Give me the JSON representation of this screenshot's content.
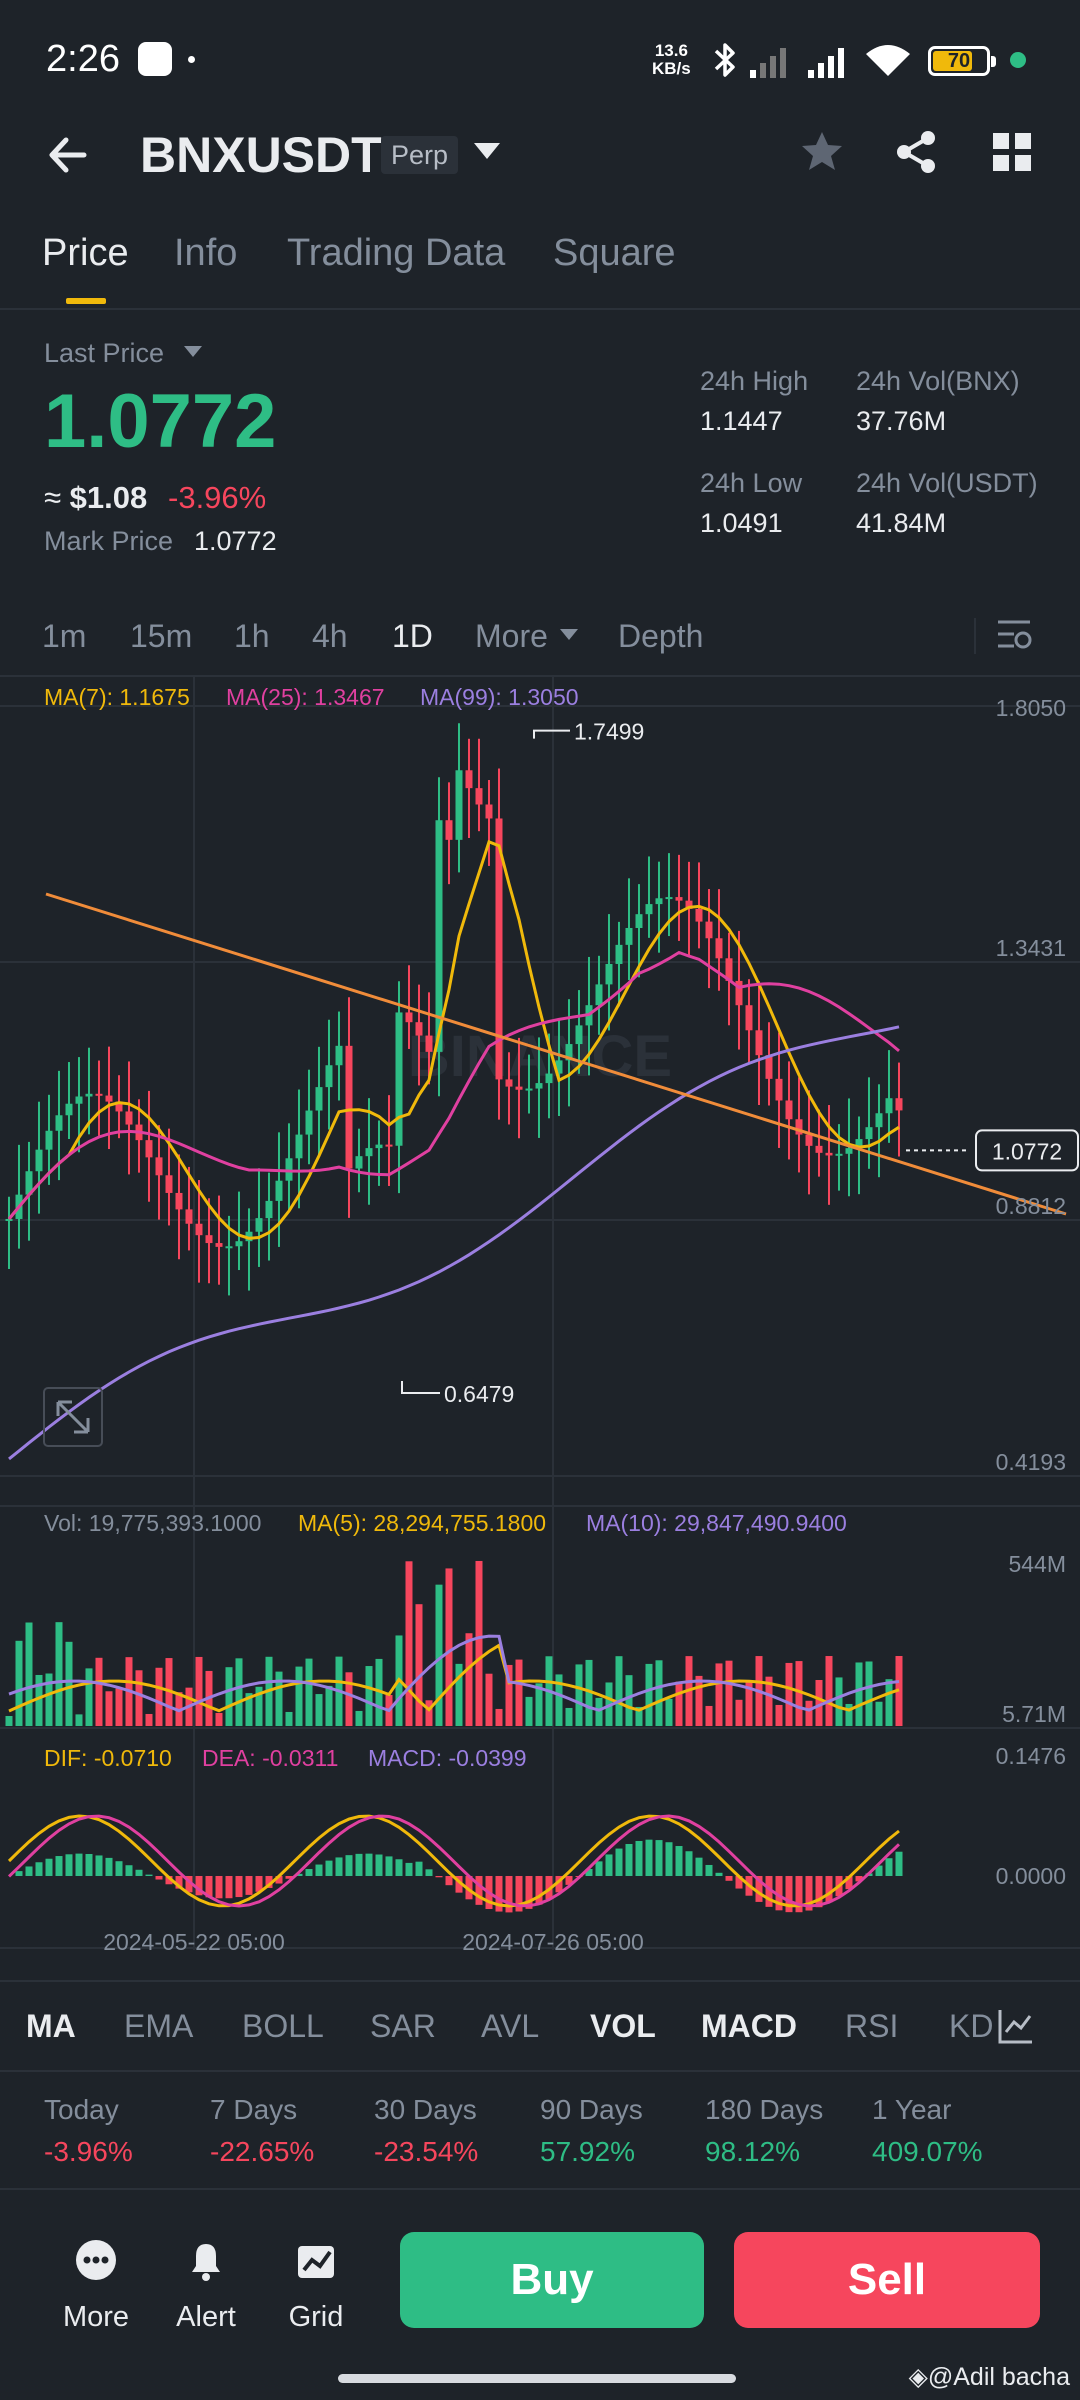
{
  "status_bar": {
    "time": "2:26",
    "net_speed_value": "13.6",
    "net_speed_unit": "KB/s",
    "battery": "70"
  },
  "header": {
    "symbol": "BNXUSDT",
    "contract_badge": "Perp",
    "icons": [
      "back-arrow-icon",
      "star-icon",
      "share-icon",
      "grid-icon"
    ]
  },
  "tabs": [
    {
      "label": "Price",
      "active": true
    },
    {
      "label": "Info",
      "active": false
    },
    {
      "label": "Trading Data",
      "active": false
    },
    {
      "label": "Square",
      "active": false
    }
  ],
  "price": {
    "last_price_label": "Last Price",
    "last_price": "1.0772",
    "approx_prefix": "≈",
    "approx_usd": "$1.08",
    "change_pct": "-3.96%",
    "mark_price_label": "Mark Price",
    "mark_price": "1.0772"
  },
  "stats": {
    "high_label": "24h High",
    "high": "1.1447",
    "low_label": "24h Low",
    "low": "1.0491",
    "vol_bnx_label": "24h Vol(BNX)",
    "vol_bnx": "37.76M",
    "vol_usdt_label": "24h Vol(USDT)",
    "vol_usdt": "41.84M"
  },
  "intervals": [
    {
      "label": "1m",
      "active": false
    },
    {
      "label": "15m",
      "active": false
    },
    {
      "label": "1h",
      "active": false
    },
    {
      "label": "4h",
      "active": false
    },
    {
      "label": "1D",
      "active": true
    },
    {
      "label": "More",
      "active": false
    },
    {
      "label": "Depth",
      "active": false
    }
  ],
  "chart": {
    "ma_legend": {
      "ma7": "MA(7): 1.1675",
      "ma25": "MA(25): 1.3467",
      "ma99": "MA(99): 1.3050"
    },
    "price_axis": [
      "1.8050",
      "1.3431",
      "0.8812",
      "0.4193"
    ],
    "high_marker": "1.7499",
    "low_marker": "0.6479",
    "current_price_tag": "1.0772",
    "watermark": "BINANCE",
    "vol_legend": {
      "vol": "Vol: 19,775,393.1000",
      "ma5": "MA(5): 28,294,755.1800",
      "ma10": "MA(10): 29,847,490.9400"
    },
    "vol_axis": [
      "544M",
      "5.71M"
    ],
    "macd_legend": {
      "dif": "DIF: -0.0710",
      "dea": "DEA: -0.0311",
      "macd": "MACD: -0.0399"
    },
    "macd_axis": [
      "0.1476",
      "0.0000"
    ],
    "time_axis": [
      "2024-05-22 05:00",
      "2024-07-26 05:00"
    ],
    "colors": {
      "up": "#2ebd85",
      "down": "#f6465d",
      "ma7": "#f0b90b",
      "ma25": "#e040a0",
      "ma99": "#9b7fe0",
      "trend": "#f08c3a"
    }
  },
  "indicators": [
    {
      "label": "MA",
      "active": true
    },
    {
      "label": "EMA",
      "active": false
    },
    {
      "label": "BOLL",
      "active": false
    },
    {
      "label": "SAR",
      "active": false
    },
    {
      "label": "AVL",
      "active": false
    },
    {
      "label": "VOL",
      "active": true
    },
    {
      "label": "MACD",
      "active": true
    },
    {
      "label": "RSI",
      "active": false
    },
    {
      "label": "KD",
      "active": false
    }
  ],
  "performance": [
    {
      "label": "Today",
      "value": "-3.96%",
      "sign": "neg"
    },
    {
      "label": "7 Days",
      "value": "-22.65%",
      "sign": "neg"
    },
    {
      "label": "30 Days",
      "value": "-23.54%",
      "sign": "neg"
    },
    {
      "label": "90 Days",
      "value": "57.92%",
      "sign": "pos"
    },
    {
      "label": "180 Days",
      "value": "98.12%",
      "sign": "pos"
    },
    {
      "label": "1 Year",
      "value": "409.07%",
      "sign": "pos"
    }
  ],
  "bottom_bar": {
    "more": "More",
    "alert": "Alert",
    "grid": "Grid",
    "buy": "Buy",
    "sell": "Sell"
  },
  "credit": "@Adil bacha"
}
